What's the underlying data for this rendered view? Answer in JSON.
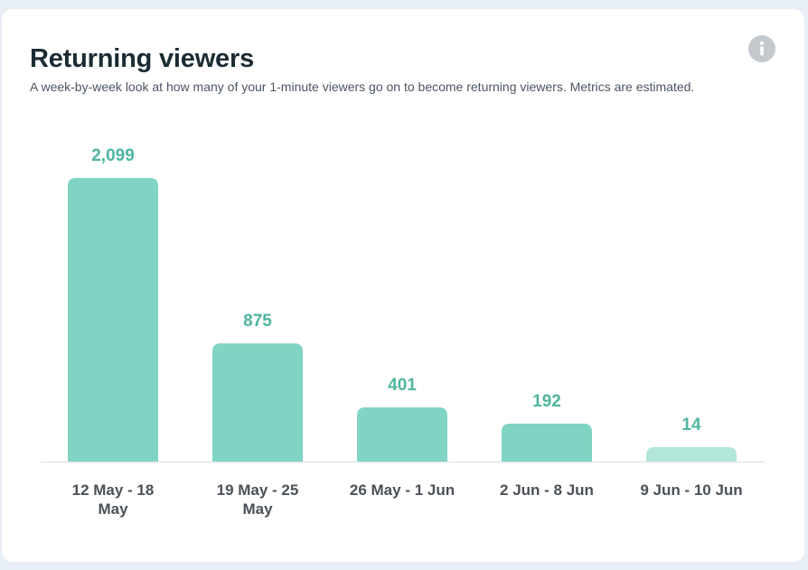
{
  "card": {
    "title": "Returning viewers",
    "subtitle": "A week-by-week look at how many of your 1-minute viewers go on to become returning viewers. Metrics are estimated.",
    "info_icon": "info-icon"
  },
  "colors": {
    "bar": "#80d4c3",
    "bar_partial": "#b3e6db",
    "value_label": "#4fb5a1",
    "category_label": "#4b5058",
    "baseline": "#e4e6eb"
  },
  "chart_data": {
    "type": "bar",
    "categories": [
      [
        "12 May - 18",
        "May"
      ],
      [
        "19 May - 25",
        "May"
      ],
      [
        "26 May - 1 Jun"
      ],
      [
        "2 Jun - 8 Jun"
      ],
      [
        "9 Jun - 10 Jun"
      ]
    ],
    "values": [
      2099,
      875,
      401,
      192,
      14
    ],
    "value_labels": [
      "2,099",
      "875",
      "401",
      "192",
      "14"
    ],
    "partial_period_index": 4,
    "title": "Returning viewers",
    "xlabel": "",
    "ylabel": "",
    "grid": false,
    "legend": "none"
  }
}
